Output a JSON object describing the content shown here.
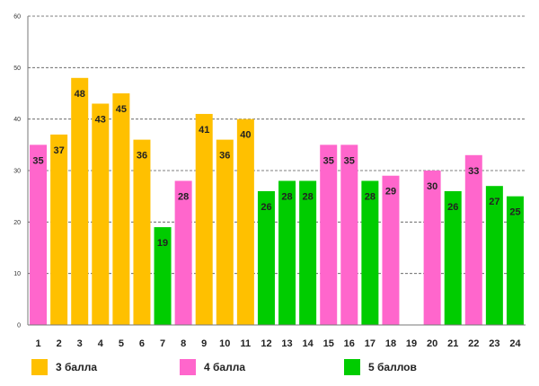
{
  "chart_data": {
    "type": "bar",
    "title": "",
    "xlabel": "",
    "ylabel": "",
    "ylim": [
      0,
      60
    ],
    "yticks": [
      "0",
      "10",
      "20",
      "30",
      "40",
      "50",
      "60"
    ],
    "grid": true,
    "legend_position": "bottom",
    "categories": [
      "1",
      "2",
      "3",
      "4",
      "5",
      "6",
      "7",
      "8",
      "9",
      "10",
      "11",
      "12",
      "13",
      "14",
      "15",
      "16",
      "17",
      "18",
      "19",
      "20",
      "21",
      "22",
      "23",
      "24"
    ],
    "values": [
      35,
      37,
      48,
      43,
      45,
      36,
      19,
      28,
      41,
      36,
      40,
      26,
      28,
      28,
      35,
      35,
      28,
      29,
      null,
      30,
      26,
      33,
      27,
      25
    ],
    "groups": [
      "4",
      "3",
      "3",
      "3",
      "3",
      "3",
      "5",
      "4",
      "3",
      "3",
      "3",
      "5",
      "5",
      "5",
      "4",
      "4",
      "5",
      "4",
      "",
      "4",
      "5",
      "4",
      "5",
      "5"
    ],
    "series": [
      {
        "key": "3",
        "name": "3 балла",
        "color": "#ffc000"
      },
      {
        "key": "4",
        "name": "4 балла",
        "color": "#ff66cc"
      },
      {
        "key": "5",
        "name": "5 баллов",
        "color": "#00cc00"
      }
    ]
  }
}
